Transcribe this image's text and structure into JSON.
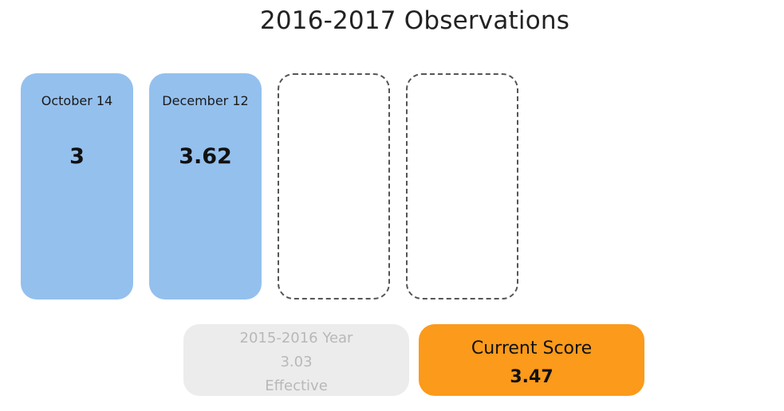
{
  "title": "2016-2017 Observations",
  "observations": [
    {
      "date": "October 14",
      "score": "3"
    },
    {
      "date": "December 12",
      "score": "3.62"
    }
  ],
  "previous_year": {
    "label": "2015-2016 Year",
    "score": "3.03",
    "rating": "Effective"
  },
  "current_score": {
    "label": "Current Score",
    "value": "3.47"
  },
  "colors": {
    "observation_card": "#94c0ee",
    "current_score_bg": "#fb9a1b",
    "previous_year_bg": "#ececec"
  }
}
